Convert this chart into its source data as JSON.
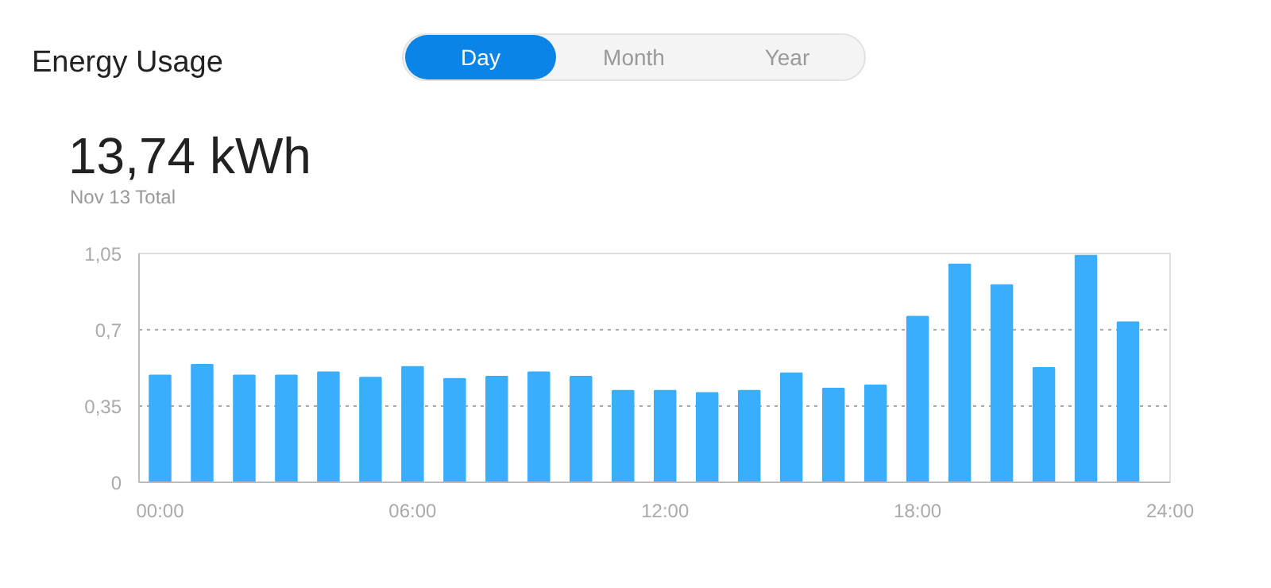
{
  "chart_data": {
    "type": "bar",
    "title": "Energy Usage",
    "subtitle": "13,74 kWh",
    "annotations": [
      "Nov 13 Total",
      "Day",
      "Month",
      "Year"
    ],
    "x": [
      0,
      1,
      2,
      3,
      4,
      5,
      6,
      7,
      8,
      9,
      10,
      11,
      12,
      13,
      14,
      15,
      16,
      17,
      18,
      19,
      20,
      21,
      22,
      23
    ],
    "values": [
      0.49,
      0.54,
      0.49,
      0.49,
      0.505,
      0.48,
      0.53,
      0.475,
      0.485,
      0.505,
      0.485,
      0.42,
      0.42,
      0.41,
      0.42,
      0.5,
      0.43,
      0.445,
      0.76,
      1.0,
      0.905,
      0.525,
      1.04,
      0.735
    ],
    "color": "#3aaefc",
    "xlim": [
      -0.5,
      24
    ],
    "xticks": [
      {
        "value": 0,
        "label": "00:00"
      },
      {
        "value": 6,
        "label": "06:00"
      },
      {
        "value": 12,
        "label": "12:00"
      },
      {
        "value": 18,
        "label": "18:00"
      },
      {
        "value": 24,
        "label": "24:00"
      }
    ],
    "ylim": [
      0,
      1.05
    ],
    "yticks": [
      {
        "value": 0,
        "label": "0"
      },
      {
        "value": 0.35,
        "label": "0,35"
      },
      {
        "value": 0.7,
        "label": "0,7"
      },
      {
        "value": 1.05,
        "label": "1,05"
      }
    ],
    "grid": "y"
  }
}
